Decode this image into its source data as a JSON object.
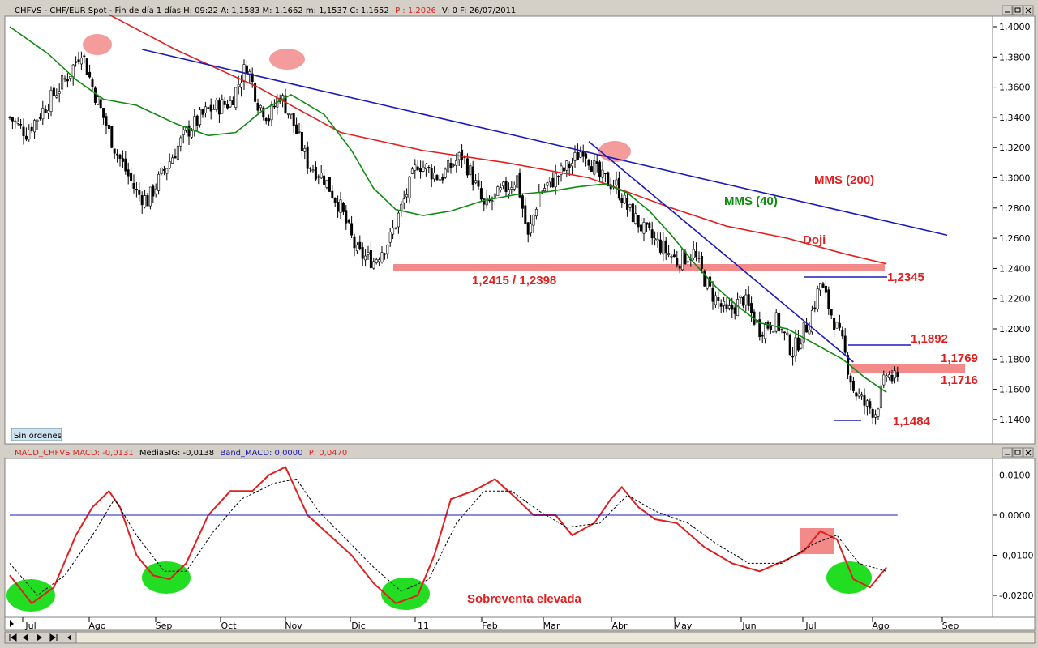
{
  "header": {
    "symbol": "CHFVS",
    "text": "CHFVS - CHF/EUR Spot - Fin de día 1 días  H: 09:22  A: 1,1583  M: 1,1662  m: 1,1537  C: 1,1652",
    "p_label": "P : 1,2026",
    "tail": "V: 0  F: 26/07/2011"
  },
  "status_button": "Sin órdenes",
  "macd_header": {
    "macd": "MACD_CHFVS  MACD: -0,0131",
    "sig": "MediaSIG: -0,0138",
    "band": "Band_MACD: 0,0000",
    "p": "P: 0,0470"
  },
  "colors": {
    "red": "#e02020",
    "green": "#108a10",
    "blue": "#1a1ab8",
    "highlight": "#f28a8a",
    "oversold": "#22dd22"
  },
  "annotations": {
    "mms200": "MMS (200)",
    "mms40": "MMS (40)",
    "doji": "Doji",
    "support": "1,2415 / 1,2398",
    "l2345": "1,2345",
    "l1892": "1,1892",
    "l1769": "1,1769",
    "l1716": "1,1716",
    "l1484": "1,1484",
    "oversold": "Sobreventa elevada"
  },
  "chart_data": [
    {
      "type": "candlestick",
      "title": "CHFVS - CHF/EUR Spot",
      "ylim": [
        1.13,
        1.405
      ],
      "yticks": [
        "1,4000",
        "1,3800",
        "1,3600",
        "1,3400",
        "1,3200",
        "1,3000",
        "1,2800",
        "1,2600",
        "1,2400",
        "1,2200",
        "1,2000",
        "1,1800",
        "1,1600",
        "1,1400"
      ],
      "xticks": [
        "Jul",
        "Ago",
        "Sep",
        "Oct",
        "Nov",
        "Dic",
        "11",
        "Feb",
        "Mar",
        "Abr",
        "May",
        "Jun",
        "Jul",
        "Ago",
        "Sep"
      ],
      "close_path": [
        [
          0,
          1.34
        ],
        [
          6,
          1.33
        ],
        [
          14,
          1.35
        ],
        [
          22,
          1.37
        ],
        [
          26,
          1.385
        ],
        [
          30,
          1.36
        ],
        [
          38,
          1.32
        ],
        [
          46,
          1.29
        ],
        [
          50,
          1.285
        ],
        [
          56,
          1.305
        ],
        [
          64,
          1.33
        ],
        [
          72,
          1.345
        ],
        [
          80,
          1.35
        ],
        [
          86,
          1.375
        ],
        [
          90,
          1.35
        ],
        [
          94,
          1.34
        ],
        [
          98,
          1.355
        ],
        [
          102,
          1.34
        ],
        [
          108,
          1.31
        ],
        [
          114,
          1.3
        ],
        [
          120,
          1.28
        ],
        [
          126,
          1.25
        ],
        [
          132,
          1.245
        ],
        [
          138,
          1.26
        ],
        [
          142,
          1.28
        ],
        [
          148,
          1.31
        ],
        [
          156,
          1.3
        ],
        [
          164,
          1.315
        ],
        [
          168,
          1.3
        ],
        [
          172,
          1.28
        ],
        [
          178,
          1.29
        ],
        [
          184,
          1.3
        ],
        [
          188,
          1.26
        ],
        [
          192,
          1.29
        ],
        [
          198,
          1.3
        ],
        [
          204,
          1.31
        ],
        [
          208,
          1.32
        ],
        [
          214,
          1.3
        ],
        [
          220,
          1.295
        ],
        [
          224,
          1.28
        ],
        [
          230,
          1.265
        ],
        [
          236,
          1.255
        ],
        [
          242,
          1.245
        ],
        [
          248,
          1.25
        ],
        [
          254,
          1.225
        ],
        [
          260,
          1.21
        ],
        [
          266,
          1.22
        ],
        [
          272,
          1.2
        ],
        [
          278,
          1.205
        ],
        [
          284,
          1.185
        ],
        [
          290,
          1.205
        ],
        [
          294,
          1.23
        ],
        [
          298,
          1.21
        ],
        [
          302,
          1.19
        ],
        [
          306,
          1.16
        ],
        [
          310,
          1.15
        ],
        [
          314,
          1.145
        ],
        [
          318,
          1.17
        ],
        [
          322,
          1.165
        ]
      ],
      "series": [
        {
          "name": "MMS (200)",
          "points": [
            [
              36,
              1.408
            ],
            [
              60,
              1.385
            ],
            [
              90,
              1.36
            ],
            [
              120,
              1.33
            ],
            [
              150,
              1.318
            ],
            [
              180,
              1.31
            ],
            [
              210,
              1.3
            ],
            [
              240,
              1.28
            ],
            [
              260,
              1.268
            ],
            [
              282,
              1.26
            ],
            [
              302,
              1.25
            ],
            [
              318,
              1.243
            ]
          ]
        },
        {
          "name": "MMS (40)",
          "points": [
            [
              0,
              1.4
            ],
            [
              14,
              1.382
            ],
            [
              24,
              1.365
            ],
            [
              34,
              1.352
            ],
            [
              46,
              1.348
            ],
            [
              60,
              1.336
            ],
            [
              72,
              1.328
            ],
            [
              82,
              1.33
            ],
            [
              92,
              1.345
            ],
            [
              102,
              1.355
            ],
            [
              114,
              1.342
            ],
            [
              124,
              1.318
            ],
            [
              132,
              1.293
            ],
            [
              140,
              1.279
            ],
            [
              150,
              1.275
            ],
            [
              160,
              1.278
            ],
            [
              172,
              1.285
            ],
            [
              184,
              1.289
            ],
            [
              196,
              1.291
            ],
            [
              206,
              1.294
            ],
            [
              216,
              1.296
            ],
            [
              224,
              1.29
            ],
            [
              232,
              1.278
            ],
            [
              240,
              1.262
            ],
            [
              248,
              1.244
            ],
            [
              256,
              1.228
            ],
            [
              264,
              1.215
            ],
            [
              272,
              1.204
            ],
            [
              282,
              1.2
            ],
            [
              292,
              1.19
            ],
            [
              302,
              1.18
            ],
            [
              310,
              1.168
            ],
            [
              318,
              1.158
            ]
          ]
        }
      ],
      "trend_lines": [
        {
          "from": [
            48,
            1.385
          ],
          "to": [
            340,
            1.262
          ]
        },
        {
          "from": [
            210,
            1.324
          ],
          "to": [
            306,
            1.178
          ]
        }
      ],
      "levels": [
        {
          "label": "1,2415 / 1,2398",
          "value": 1.2406
        },
        {
          "label": "1,2345",
          "value": 1.2345
        },
        {
          "label": "1,1892",
          "value": 1.1892
        },
        {
          "label": "1,1769",
          "value": 1.1769
        },
        {
          "label": "1,1716",
          "value": 1.1716
        },
        {
          "label": "1,1484",
          "value": 1.1484
        }
      ]
    },
    {
      "type": "line",
      "title": "MACD_CHFVS",
      "ylim": [
        -0.025,
        0.015
      ],
      "yticks": [
        "0,0100",
        "0,0000",
        "-0,0100",
        "-0,0200"
      ],
      "series": [
        {
          "name": "MACD",
          "points": [
            [
              0,
              -0.015
            ],
            [
              8,
              -0.022
            ],
            [
              16,
              -0.018
            ],
            [
              24,
              -0.005
            ],
            [
              30,
              0.002
            ],
            [
              36,
              0.006
            ],
            [
              40,
              0.002
            ],
            [
              46,
              -0.01
            ],
            [
              52,
              -0.015
            ],
            [
              58,
              -0.016
            ],
            [
              64,
              -0.012
            ],
            [
              72,
              0.0
            ],
            [
              80,
              0.006
            ],
            [
              88,
              0.006
            ],
            [
              94,
              0.01
            ],
            [
              100,
              0.012
            ],
            [
              104,
              0.006
            ],
            [
              108,
              0.0
            ],
            [
              116,
              -0.005
            ],
            [
              124,
              -0.01
            ],
            [
              132,
              -0.017
            ],
            [
              140,
              -0.022
            ],
            [
              148,
              -0.02
            ],
            [
              154,
              -0.01
            ],
            [
              160,
              0.004
            ],
            [
              168,
              0.006
            ],
            [
              176,
              0.009
            ],
            [
              184,
              0.004
            ],
            [
              190,
              0.0
            ],
            [
              198,
              0.0
            ],
            [
              204,
              -0.005
            ],
            [
              212,
              -0.002
            ],
            [
              218,
              0.004
            ],
            [
              222,
              0.007
            ],
            [
              228,
              0.002
            ],
            [
              234,
              -0.001
            ],
            [
              242,
              -0.002
            ],
            [
              252,
              -0.008
            ],
            [
              262,
              -0.012
            ],
            [
              272,
              -0.014
            ],
            [
              282,
              -0.011
            ],
            [
              288,
              -0.009
            ],
            [
              294,
              -0.004
            ],
            [
              300,
              -0.006
            ],
            [
              306,
              -0.016
            ],
            [
              312,
              -0.018
            ],
            [
              318,
              -0.013
            ]
          ]
        },
        {
          "name": "MediaSIG",
          "points": [
            [
              0,
              -0.012
            ],
            [
              10,
              -0.02
            ],
            [
              20,
              -0.015
            ],
            [
              30,
              -0.005
            ],
            [
              38,
              0.004
            ],
            [
              46,
              -0.005
            ],
            [
              56,
              -0.014
            ],
            [
              64,
              -0.014
            ],
            [
              74,
              -0.004
            ],
            [
              84,
              0.004
            ],
            [
              96,
              0.008
            ],
            [
              104,
              0.009
            ],
            [
              112,
              0.001
            ],
            [
              122,
              -0.006
            ],
            [
              132,
              -0.013
            ],
            [
              142,
              -0.019
            ],
            [
              152,
              -0.016
            ],
            [
              162,
              -0.002
            ],
            [
              172,
              0.006
            ],
            [
              182,
              0.006
            ],
            [
              192,
              0.001
            ],
            [
              202,
              -0.003
            ],
            [
              214,
              -0.002
            ],
            [
              224,
              0.005
            ],
            [
              234,
              0.001
            ],
            [
              246,
              -0.002
            ],
            [
              256,
              -0.007
            ],
            [
              268,
              -0.012
            ],
            [
              280,
              -0.012
            ],
            [
              292,
              -0.007
            ],
            [
              300,
              -0.005
            ],
            [
              308,
              -0.012
            ],
            [
              318,
              -0.014
            ]
          ]
        },
        {
          "name": "Band_MACD",
          "points": [
            [
              0,
              0.0
            ],
            [
              322,
              0.0
            ]
          ]
        }
      ]
    }
  ]
}
